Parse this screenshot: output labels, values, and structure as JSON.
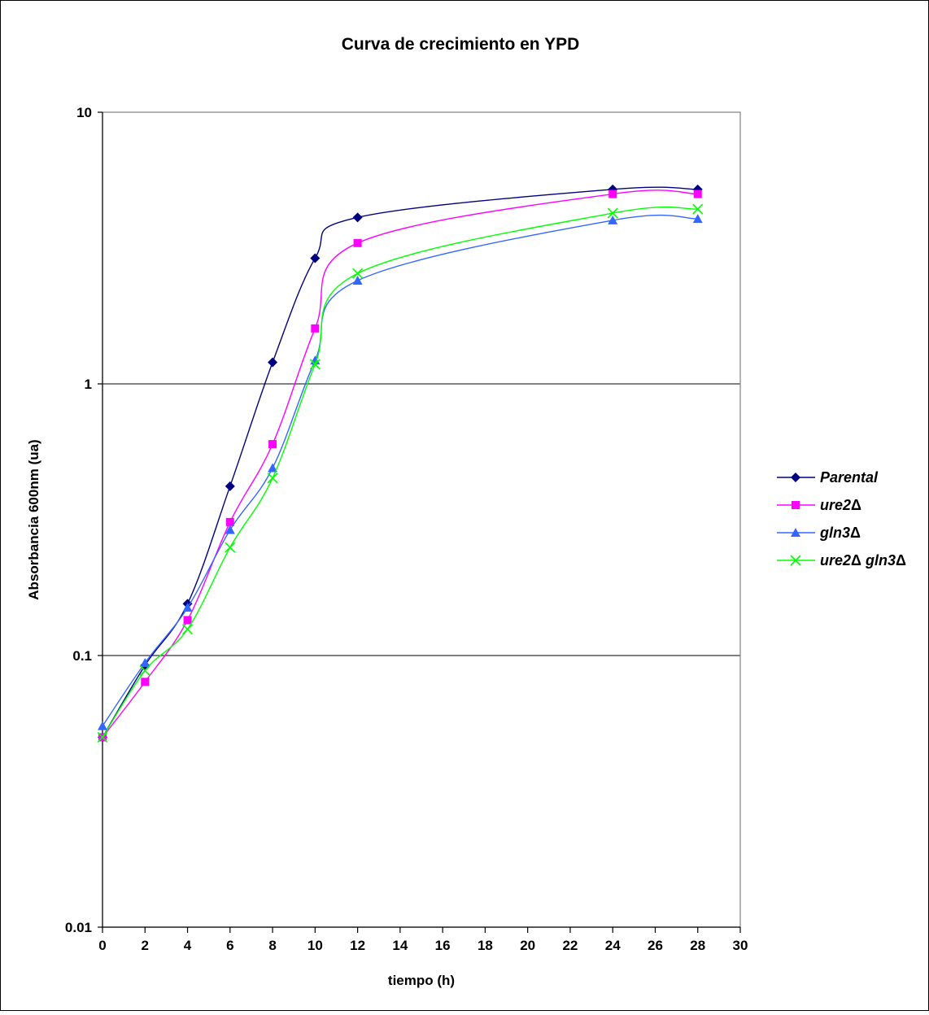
{
  "chart_data": {
    "type": "line",
    "title": "Curva de crecimiento en YPD",
    "xlabel": "tiempo (h)",
    "ylabel": "Absorbancia 600nm (ua)",
    "xlim": [
      0,
      30
    ],
    "ylim": [
      0.01,
      10
    ],
    "yscale": "log",
    "x_ticks": [
      "0",
      "2",
      "4",
      "6",
      "8",
      "10",
      "12",
      "14",
      "16",
      "18",
      "20",
      "22",
      "24",
      "26",
      "28",
      "30"
    ],
    "y_ticks": [
      "0.01",
      "0.1",
      "1",
      "10"
    ],
    "grid": "horizontal at major y ticks",
    "legend_position": "right",
    "x": [
      0,
      2,
      4,
      6,
      8,
      10,
      12,
      24,
      28
    ],
    "series": [
      {
        "name": "Parental",
        "delta": "",
        "marker": "diamond",
        "color": "#000080",
        "values": [
          0.05,
          0.092,
          0.155,
          0.42,
          1.2,
          2.9,
          4.1,
          5.2,
          5.2
        ]
      },
      {
        "name": "ure2",
        "delta": "Δ",
        "marker": "square",
        "color": "#ff00ff",
        "values": [
          0.05,
          0.08,
          0.135,
          0.31,
          0.6,
          1.6,
          3.3,
          5.0,
          5.0
        ]
      },
      {
        "name": "gln3",
        "delta": "Δ",
        "marker": "triangle",
        "color": "#3366ff",
        "values": [
          0.055,
          0.094,
          0.15,
          0.29,
          0.49,
          1.22,
          2.4,
          4.0,
          4.05
        ]
      },
      {
        "name": "ure2",
        "delta": "Δ",
        "name2": "gln3",
        "delta2": "Δ",
        "marker": "x",
        "color": "#00ff00",
        "values": [
          0.05,
          0.088,
          0.125,
          0.25,
          0.45,
          1.18,
          2.55,
          4.25,
          4.4
        ]
      }
    ]
  }
}
